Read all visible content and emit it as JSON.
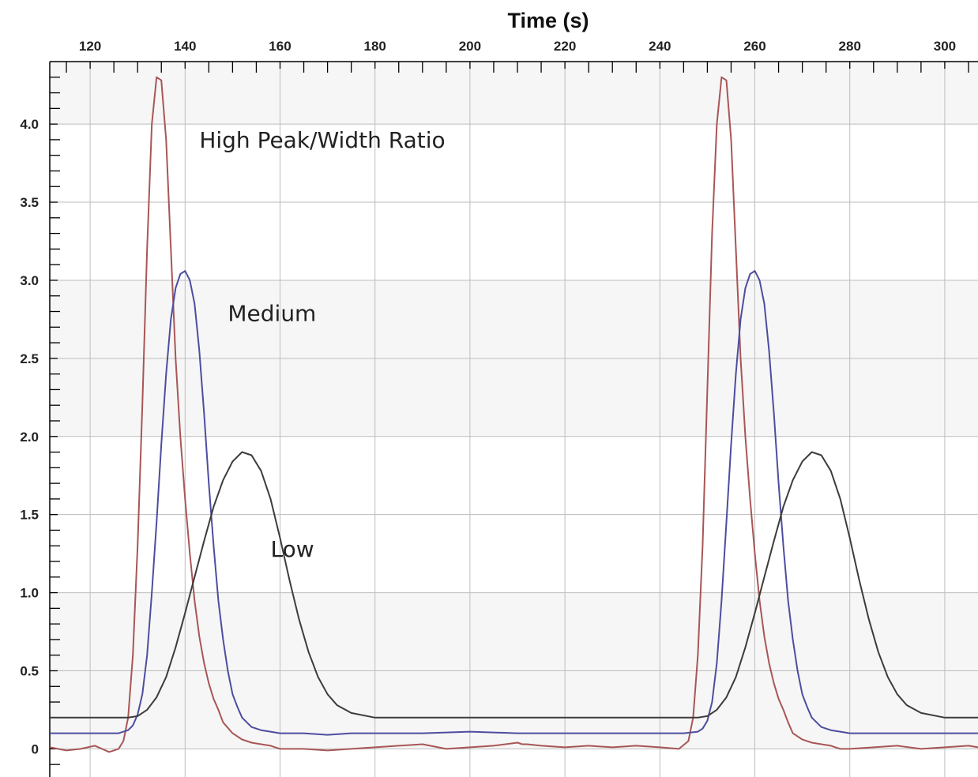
{
  "chart_data": {
    "type": "line",
    "title": "",
    "xlabel": "Time (s)",
    "ylabel": "",
    "xlim": [
      111.5,
      307
    ],
    "ylim": [
      -0.18,
      4.4
    ],
    "x_ticks": [
      120,
      140,
      160,
      180,
      200,
      220,
      240,
      260,
      280,
      300
    ],
    "x_tick_labels": [
      "120",
      "140",
      "160",
      "180",
      "200",
      "220",
      "240",
      "260",
      "280",
      "300"
    ],
    "y_ticks": [
      0,
      0.5,
      1.0,
      1.5,
      2.0,
      2.5,
      3.0,
      3.5,
      4.0
    ],
    "y_tick_labels": [
      "0",
      "0.5",
      "1.0",
      "1.5",
      "2.0",
      "2.5",
      "3.0",
      "3.5",
      "4.0"
    ],
    "grid": true,
    "colors": {
      "high": "#a85656",
      "medium": "#4d4da0",
      "low": "#3c3c3c",
      "band": "#f6f6f6",
      "grid": "#bdbdbd"
    },
    "annotations": [
      {
        "text": "High Peak/Width Ratio",
        "x": 143,
        "y": 3.85
      },
      {
        "text": "Medium",
        "x": 149,
        "y": 2.74
      },
      {
        "text": "Low",
        "x": 158,
        "y": 1.23
      }
    ],
    "series": [
      {
        "id": "high",
        "x": [
          111.5,
          115,
          118,
          121,
          124,
          126,
          127,
          128,
          129,
          130,
          131,
          132,
          133,
          134,
          135,
          136,
          137,
          138,
          139,
          140,
          141,
          142,
          143,
          144,
          145,
          146,
          147,
          148,
          150,
          152,
          154,
          156,
          158,
          160,
          165,
          170,
          175,
          180,
          185,
          190,
          195,
          200,
          205,
          210,
          211,
          212,
          215,
          220,
          225,
          230,
          235,
          240,
          244,
          246,
          247,
          248,
          249,
          250,
          251,
          252,
          253,
          254,
          255,
          256,
          257,
          258,
          259,
          260,
          261,
          262,
          263,
          264,
          265,
          266,
          267,
          268,
          270,
          272,
          274,
          276,
          278,
          280,
          285,
          290,
          295,
          300,
          305,
          307
        ],
        "y": [
          0.01,
          -0.01,
          0.0,
          0.02,
          -0.02,
          0.0,
          0.05,
          0.2,
          0.6,
          1.3,
          2.2,
          3.2,
          4.0,
          4.3,
          4.28,
          3.9,
          3.2,
          2.5,
          2.0,
          1.6,
          1.25,
          0.95,
          0.72,
          0.55,
          0.42,
          0.32,
          0.25,
          0.17,
          0.1,
          0.06,
          0.04,
          0.03,
          0.02,
          0.0,
          0.0,
          -0.01,
          0.0,
          0.01,
          0.02,
          0.03,
          0.0,
          0.01,
          0.02,
          0.04,
          0.03,
          0.03,
          0.02,
          0.01,
          0.02,
          0.01,
          0.02,
          0.01,
          0.0,
          0.05,
          0.2,
          0.6,
          1.3,
          2.3,
          3.3,
          4.0,
          4.3,
          4.28,
          3.9,
          3.2,
          2.5,
          2.0,
          1.6,
          1.25,
          0.95,
          0.72,
          0.55,
          0.42,
          0.32,
          0.25,
          0.17,
          0.1,
          0.06,
          0.04,
          0.03,
          0.02,
          0.0,
          0.0,
          0.01,
          0.02,
          0.0,
          0.01,
          0.02,
          0.01
        ]
      },
      {
        "id": "medium",
        "x": [
          111.5,
          120,
          126,
          128,
          129,
          130,
          131,
          132,
          133,
          134,
          135,
          136,
          137,
          138,
          139,
          140,
          141,
          142,
          143,
          144,
          145,
          146,
          147,
          148,
          149,
          150,
          151,
          152,
          154,
          156,
          158,
          160,
          165,
          170,
          175,
          180,
          190,
          200,
          210,
          220,
          230,
          240,
          245,
          248,
          249,
          250,
          251,
          252,
          253,
          254,
          255,
          256,
          257,
          258,
          259,
          260,
          261,
          262,
          263,
          264,
          265,
          266,
          267,
          268,
          269,
          270,
          271,
          272,
          274,
          276,
          278,
          280,
          290,
          300,
          307
        ],
        "y": [
          0.1,
          0.1,
          0.1,
          0.12,
          0.15,
          0.22,
          0.35,
          0.6,
          1.0,
          1.45,
          1.95,
          2.4,
          2.75,
          2.95,
          3.04,
          3.06,
          3.0,
          2.85,
          2.55,
          2.15,
          1.7,
          1.3,
          0.95,
          0.7,
          0.5,
          0.35,
          0.27,
          0.2,
          0.14,
          0.12,
          0.11,
          0.1,
          0.1,
          0.09,
          0.1,
          0.1,
          0.1,
          0.11,
          0.1,
          0.1,
          0.1,
          0.1,
          0.1,
          0.11,
          0.13,
          0.18,
          0.3,
          0.55,
          0.95,
          1.45,
          1.95,
          2.4,
          2.75,
          2.95,
          3.04,
          3.06,
          3.0,
          2.85,
          2.55,
          2.15,
          1.7,
          1.3,
          0.95,
          0.7,
          0.5,
          0.35,
          0.27,
          0.2,
          0.14,
          0.12,
          0.11,
          0.1,
          0.1,
          0.1,
          0.1
        ]
      },
      {
        "id": "low",
        "x": [
          111.5,
          120,
          125,
          128,
          130,
          132,
          134,
          136,
          138,
          140,
          142,
          144,
          146,
          148,
          150,
          152,
          154,
          156,
          158,
          160,
          162,
          164,
          166,
          168,
          170,
          172,
          175,
          180,
          190,
          200,
          220,
          240,
          246,
          248,
          250,
          252,
          254,
          256,
          258,
          260,
          262,
          264,
          266,
          268,
          270,
          272,
          274,
          276,
          278,
          280,
          282,
          284,
          286,
          288,
          290,
          292,
          295,
          300,
          307
        ],
        "y": [
          0.2,
          0.2,
          0.2,
          0.2,
          0.21,
          0.25,
          0.33,
          0.46,
          0.65,
          0.87,
          1.1,
          1.33,
          1.55,
          1.72,
          1.84,
          1.9,
          1.88,
          1.78,
          1.6,
          1.35,
          1.08,
          0.83,
          0.62,
          0.46,
          0.35,
          0.28,
          0.23,
          0.2,
          0.2,
          0.2,
          0.2,
          0.2,
          0.2,
          0.2,
          0.21,
          0.25,
          0.33,
          0.46,
          0.65,
          0.87,
          1.1,
          1.33,
          1.55,
          1.72,
          1.84,
          1.9,
          1.88,
          1.78,
          1.6,
          1.35,
          1.08,
          0.83,
          0.62,
          0.46,
          0.35,
          0.28,
          0.23,
          0.2,
          0.2
        ]
      }
    ]
  }
}
